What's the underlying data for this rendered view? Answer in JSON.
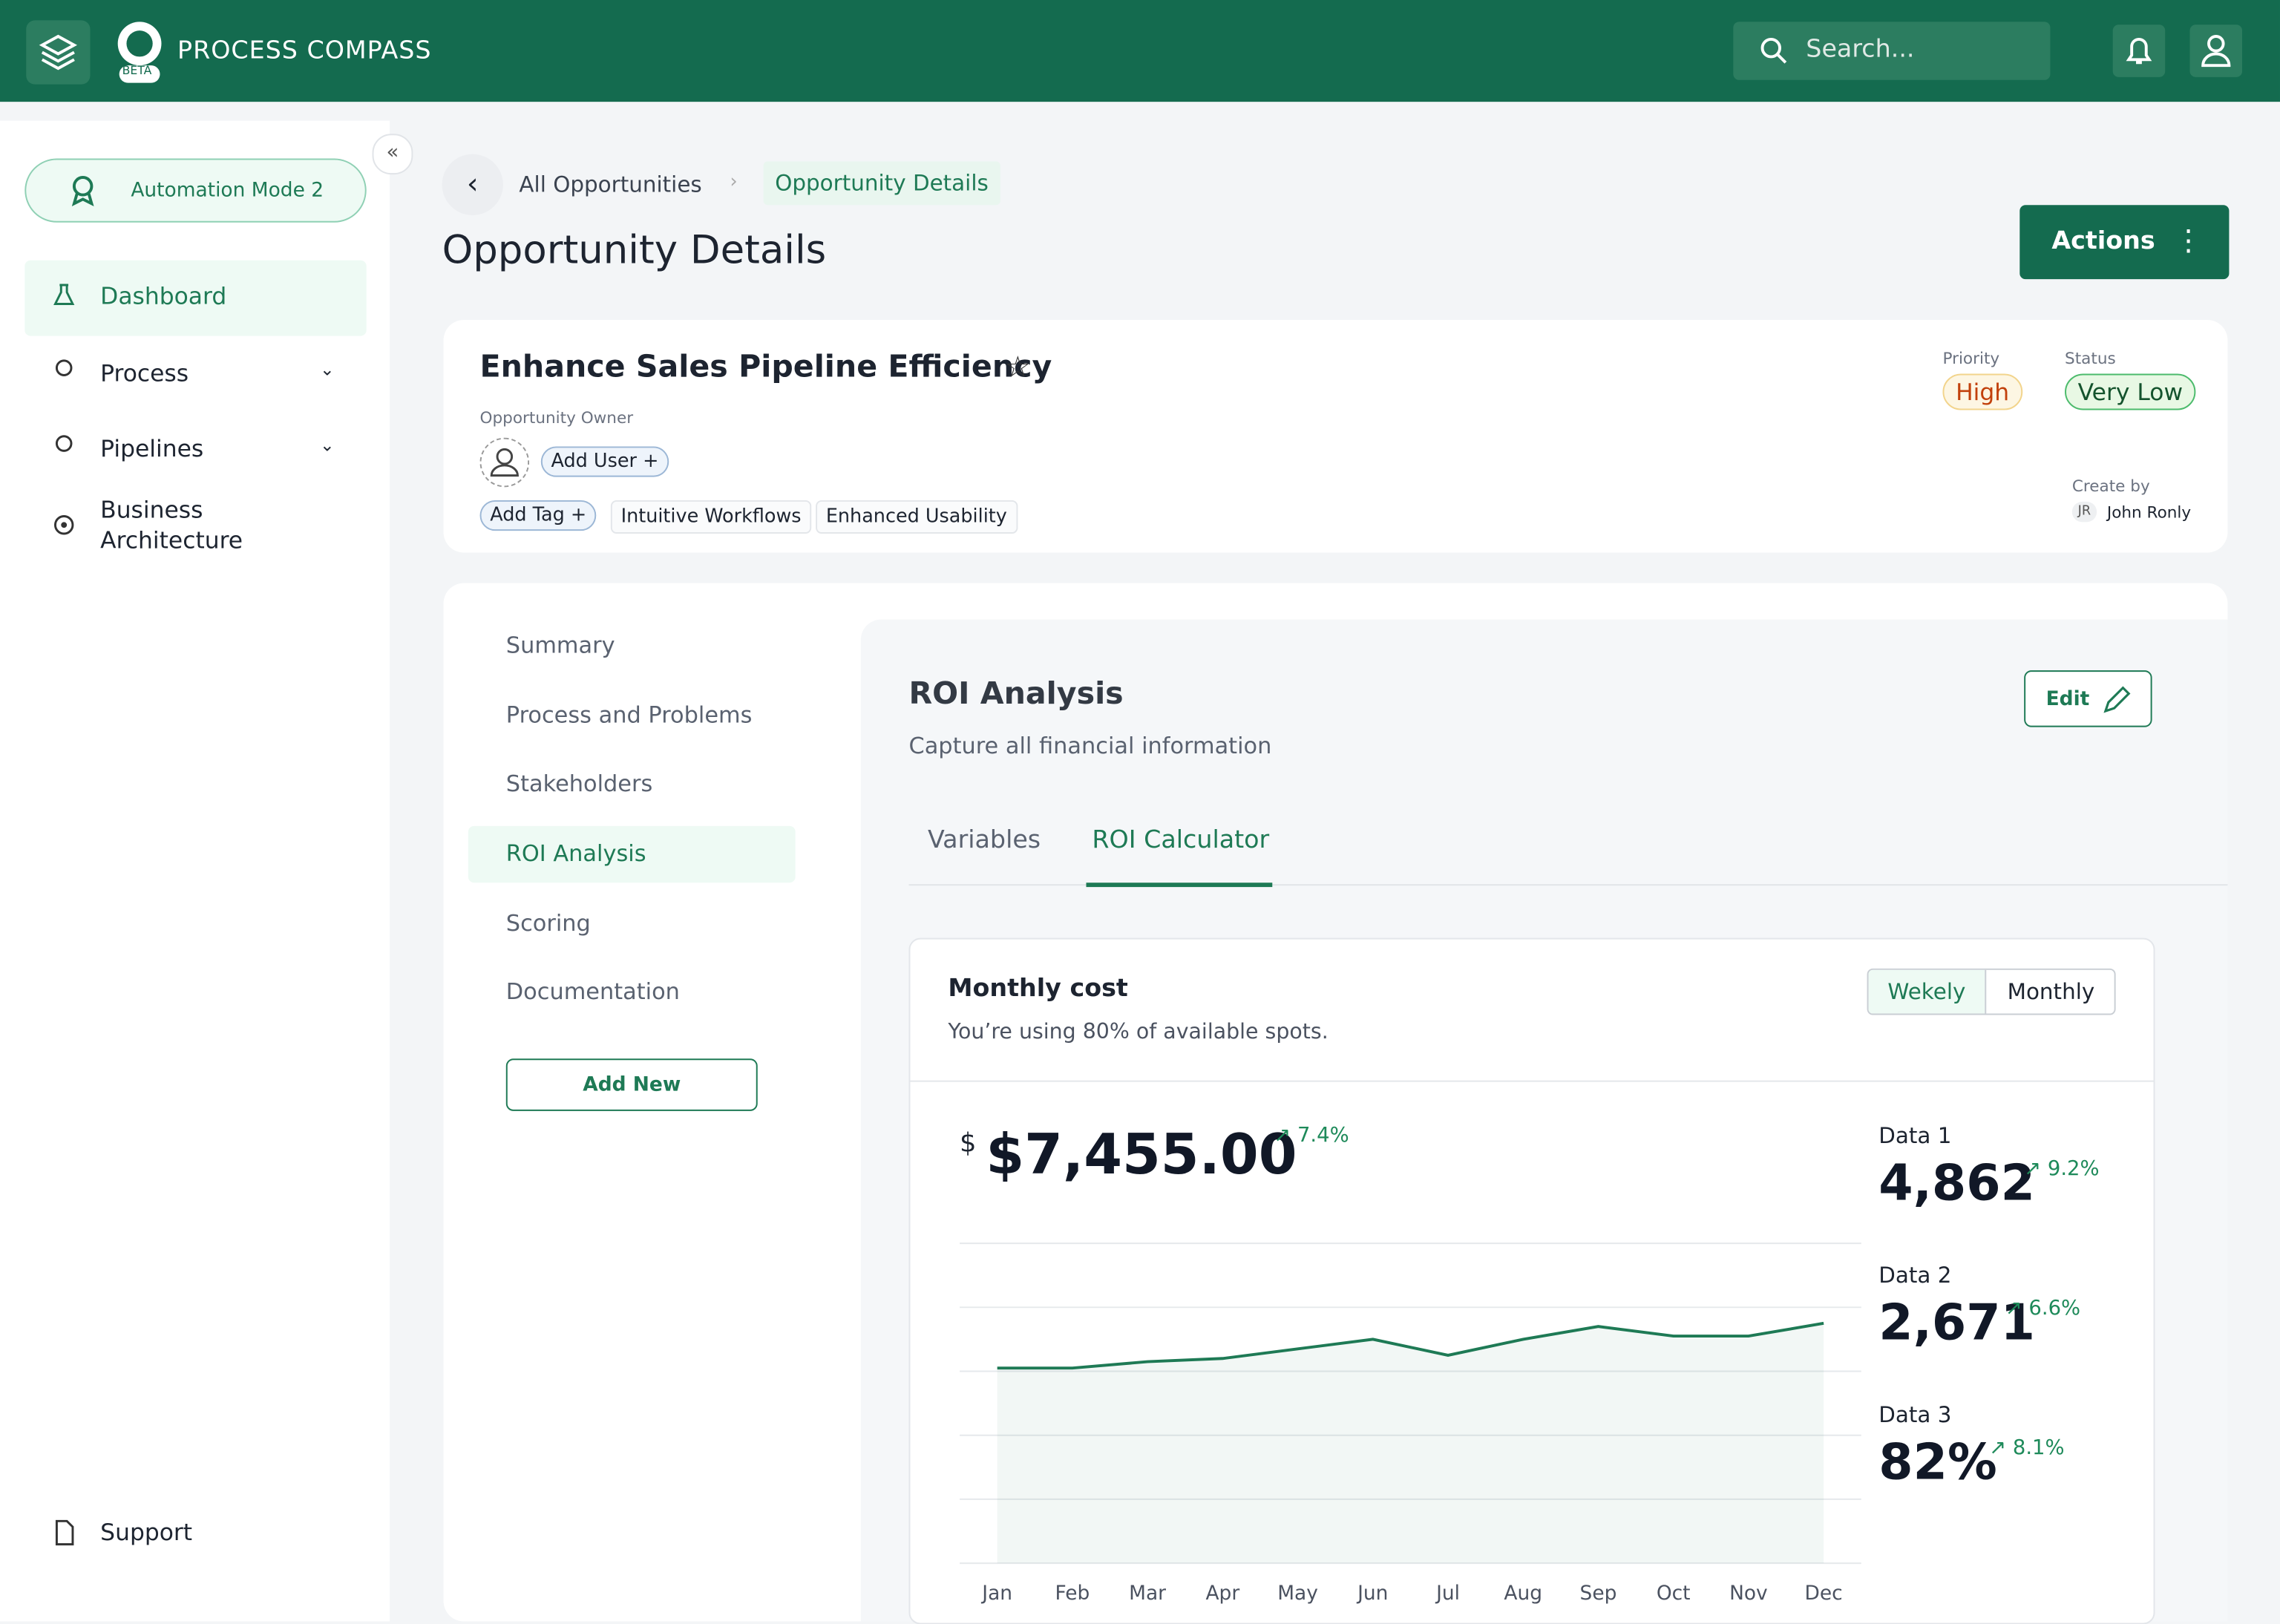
{
  "header": {
    "app_name": "PROCESS COMPASS",
    "badge": "BETA",
    "search_placeholder": "Search..."
  },
  "sidebar": {
    "mode": "Automation Mode 2",
    "items": [
      "Dashboard",
      "Process",
      "Pipelines",
      "Business Architecture"
    ],
    "support": "Support"
  },
  "breadcrumb": {
    "parent": "All Opportunities",
    "current": "Opportunity Details"
  },
  "page_title": "Opportunity Details",
  "actions": "Actions",
  "opportunity": {
    "title": "Enhance Sales Pipeline Efficiency",
    "owner_label": "Opportunity Owner",
    "add_user": "Add User",
    "add_tag": "Add Tag",
    "tags": [
      "Intuitive Workflows",
      "Enhanced Usability"
    ],
    "priority_label": "Priority",
    "priority": "High",
    "status_label": "Status",
    "status": "Very Low",
    "created_label": "Create by",
    "creator_initials": "JR",
    "creator": "John Ronly"
  },
  "sections": [
    "Summary",
    "Process and Problems",
    "Stakeholders",
    "ROI Analysis",
    "Scoring",
    "Documentation"
  ],
  "add_new": "Add New",
  "roi": {
    "title": "ROI Analysis",
    "subtitle": "Capture all financial information",
    "edit": "Edit",
    "tabs": [
      "Variables",
      "ROI Calculator"
    ],
    "card_title": "Monthly cost",
    "card_subtitle": "You’re using 80% of available spots.",
    "toggle": [
      "Wekely",
      "Monthly"
    ],
    "currency": "$",
    "total": "$7,455.00",
    "total_change": "7.4%",
    "stats": [
      {
        "label": "Data 1",
        "value": "4,862",
        "change": "9.2%"
      },
      {
        "label": "Data 2",
        "value": "2,671",
        "change": "6.6%"
      },
      {
        "label": "Data 3",
        "value": "82%",
        "change": "8.1%"
      }
    ]
  },
  "chart_data": {
    "type": "area",
    "color": "#1e7a55",
    "categories": [
      "Jan",
      "Feb",
      "Mar",
      "Apr",
      "May",
      "Jun",
      "Jul",
      "Aug",
      "Sep",
      "Oct",
      "Nov",
      "Dec"
    ],
    "values": [
      61,
      61,
      63,
      64,
      67,
      70,
      65,
      70,
      74,
      71,
      71,
      75
    ],
    "ylim": [
      0,
      100
    ]
  }
}
